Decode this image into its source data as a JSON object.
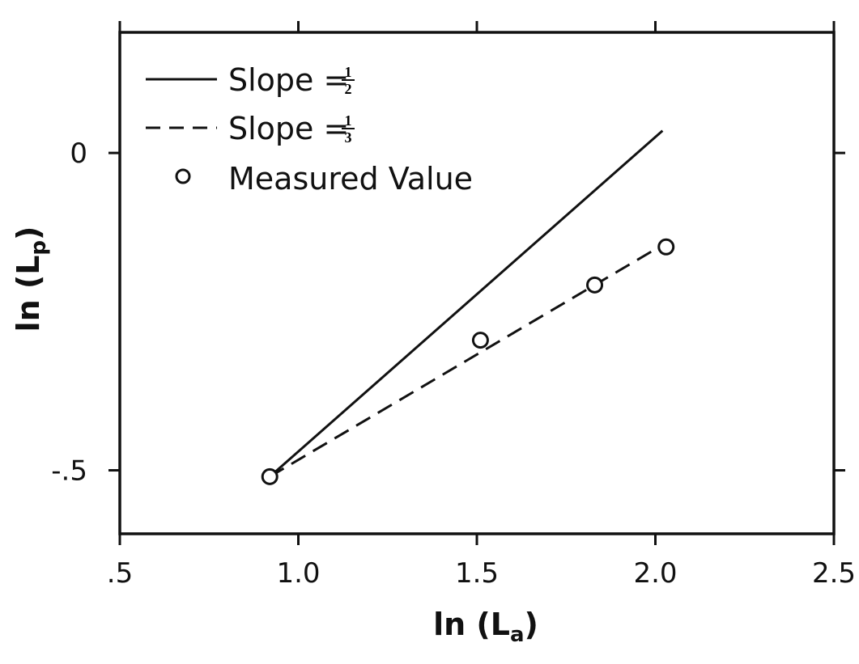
{
  "chart_data": {
    "type": "line",
    "xlabel": {
      "main": "ln (L",
      "sub": "a",
      "close": ")"
    },
    "ylabel": {
      "main": "ln (L",
      "sub": "p",
      "close": ")"
    },
    "xlim": [
      0.5,
      2.5
    ],
    "ylim": [
      -0.6,
      0.19
    ],
    "x_ticks": [
      0.5,
      1.0,
      1.5,
      2.0,
      2.5
    ],
    "x_tick_labels": [
      ".5",
      "1.0",
      "1.5",
      "2.0",
      "2.5"
    ],
    "y_ticks": [
      0,
      -0.5
    ],
    "y_tick_labels": [
      "0",
      "-.5"
    ],
    "grid": false,
    "legend_position": "top-left",
    "series": [
      {
        "name": "Slope = 1/2",
        "legend_prefix": "Slope =",
        "legend_num": "1",
        "legend_den": "2",
        "style": "solid",
        "x": [
          0.92,
          2.02
        ],
        "y": [
          -0.51,
          0.035
        ]
      },
      {
        "name": "Slope = 1/3",
        "legend_prefix": "Slope =",
        "legend_num": "1",
        "legend_den": "3",
        "style": "dashed",
        "x": [
          0.92,
          2.02
        ],
        "y": [
          -0.51,
          -0.145
        ]
      },
      {
        "name": "Measured Value",
        "legend_label": "Measured Value",
        "style": "markers",
        "x": [
          0.92,
          1.51,
          1.83,
          2.03
        ],
        "y": [
          -0.51,
          -0.295,
          -0.208,
          -0.148
        ]
      }
    ]
  }
}
